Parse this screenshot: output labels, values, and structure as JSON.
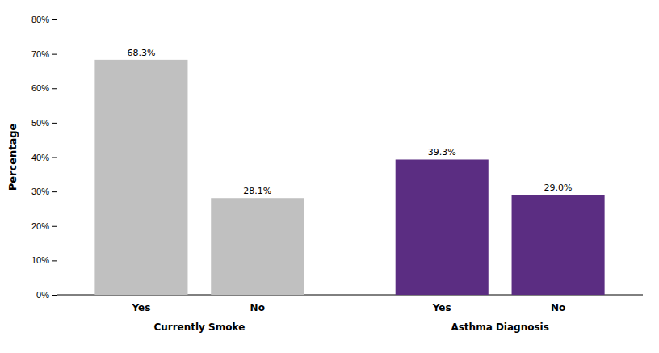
{
  "chart_data": {
    "type": "bar",
    "categories": [
      "Yes",
      "No",
      "Yes",
      "No"
    ],
    "groups": [
      "Currently Smoke",
      "Currently Smoke",
      "Asthma Diagnosis",
      "Asthma Diagnosis"
    ],
    "values": [
      68.3,
      28.1,
      39.3,
      29.0
    ],
    "value_labels": [
      "68.3%",
      "28.1%",
      "39.3%",
      "29.0%"
    ],
    "data_labels": true,
    "colors": [
      "#c0c0c0",
      "#c0c0c0",
      "#5b2d82",
      "#5b2d82"
    ],
    "ylabel": "Percentage",
    "ylim": [
      0,
      80
    ],
    "yticks": [
      {
        "value": 0,
        "label": "0%"
      },
      {
        "value": 10,
        "label": "10%"
      },
      {
        "value": 20,
        "label": "20%"
      },
      {
        "value": 30,
        "label": "30%"
      },
      {
        "value": 40,
        "label": "40%"
      },
      {
        "value": 50,
        "label": "50%"
      },
      {
        "value": 60,
        "label": "60%"
      },
      {
        "value": 70,
        "label": "70%"
      },
      {
        "value": 80,
        "label": "80%"
      }
    ],
    "grid": false
  }
}
